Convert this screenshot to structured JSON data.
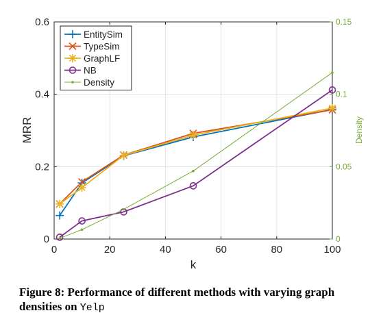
{
  "chart_data": {
    "type": "line",
    "xlabel": "k",
    "ylabel": "MRR",
    "y2label": "Density",
    "xlim": [
      0,
      100
    ],
    "ylim": [
      0,
      0.6
    ],
    "y2lim": [
      0,
      0.15
    ],
    "xticks": [
      "0",
      "20",
      "40",
      "60",
      "80",
      "100"
    ],
    "yticks": [
      "0",
      "0.2",
      "0.4",
      "0.6"
    ],
    "y2ticks": [
      "0",
      "0.05",
      "0.1",
      "0.15"
    ],
    "grid": true,
    "legend_position": "top-left",
    "x": [
      2,
      10,
      25,
      50,
      100
    ],
    "series": [
      {
        "name": "EntitySim",
        "axis": "left",
        "marker": "plus",
        "color": "#0072bd",
        "values": [
          0.065,
          0.155,
          0.23,
          0.282,
          0.358
        ]
      },
      {
        "name": "TypeSim",
        "axis": "left",
        "marker": "x",
        "color": "#d95319",
        "values": [
          0.097,
          0.158,
          0.232,
          0.292,
          0.357
        ]
      },
      {
        "name": "GraphLF",
        "axis": "left",
        "marker": "star",
        "color": "#edb120",
        "values": [
          0.097,
          0.142,
          0.231,
          0.287,
          0.362
        ]
      },
      {
        "name": "NB",
        "axis": "left",
        "marker": "circle",
        "color": "#7e2f8e",
        "values": [
          0.005,
          0.05,
          0.075,
          0.147,
          0.412
        ]
      },
      {
        "name": "Density",
        "axis": "right",
        "marker": "dot",
        "color": "#77ac30",
        "values": [
          0.0005,
          0.0065,
          0.0205,
          0.047,
          0.115
        ]
      }
    ]
  },
  "caption": {
    "label": "Figure 8:",
    "text": "Performance of different methods with varying graph densities on",
    "dataset": "Yelp"
  }
}
